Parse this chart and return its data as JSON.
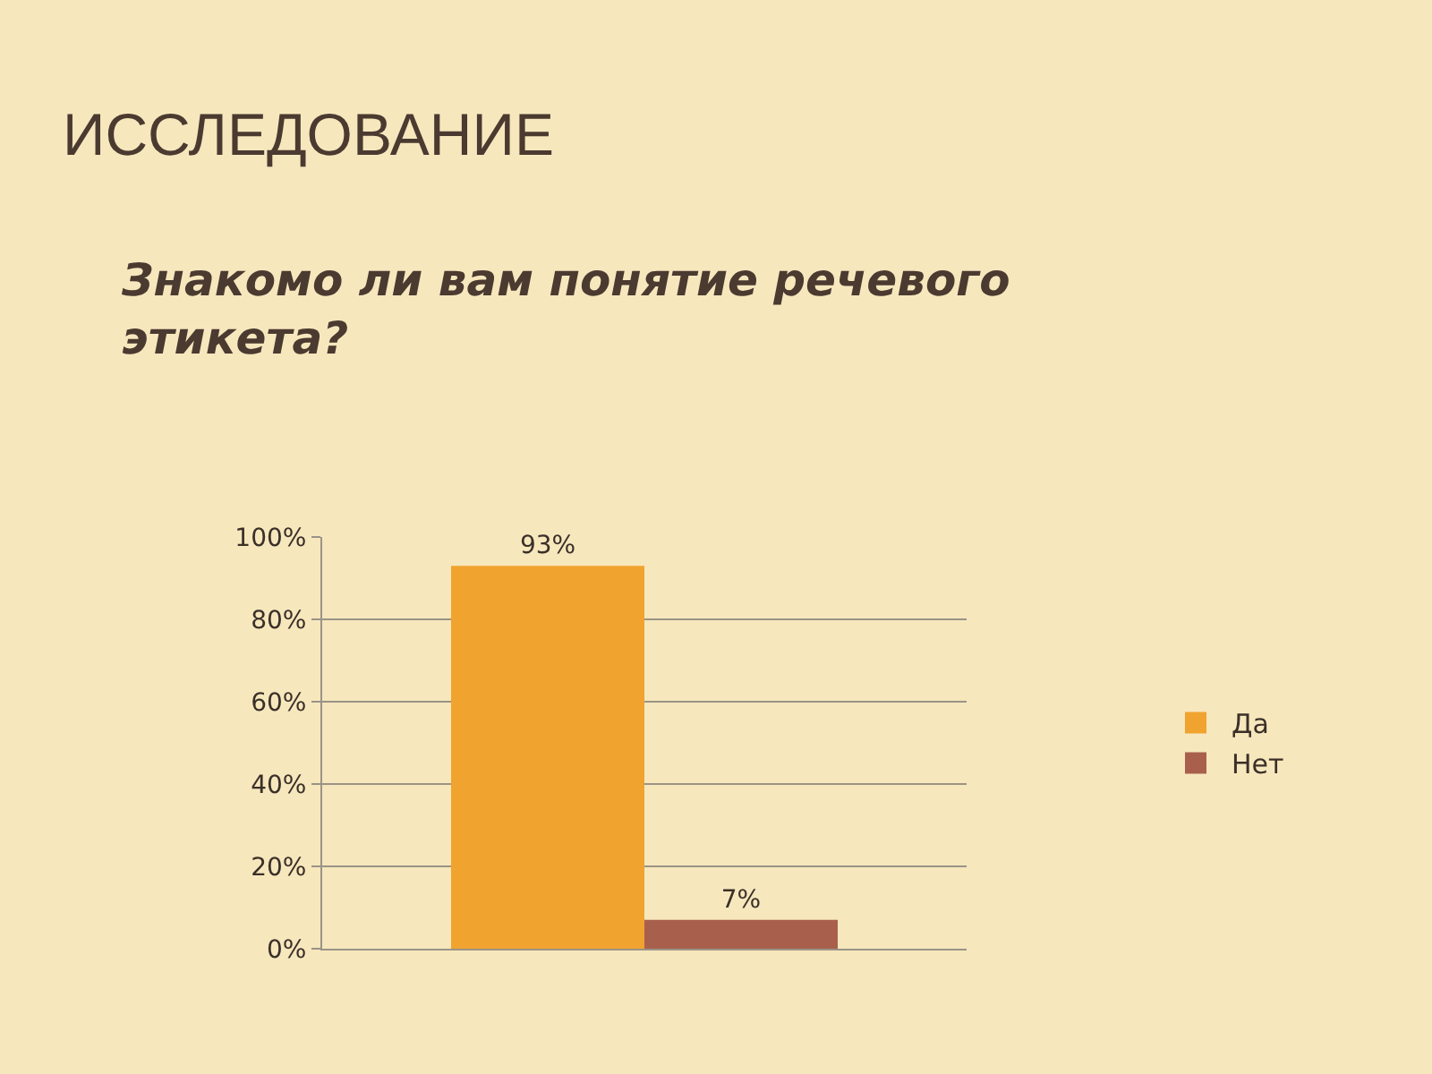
{
  "chart_data": {
    "type": "bar",
    "title": "ИССЛЕДОВАНИЕ",
    "subtitle": "Знакомо ли вам понятие речевого этикета?",
    "categories": [
      null
    ],
    "series": [
      {
        "name": "Да",
        "color": "#f0a32e",
        "values": [
          93
        ],
        "value_labels": [
          "93%"
        ]
      },
      {
        "name": "Нет",
        "color": "#a8604c",
        "values": [
          7
        ],
        "value_labels": [
          "7%"
        ]
      }
    ],
    "ylim": [
      0,
      100
    ],
    "yticks": [
      {
        "value": 0,
        "label": "0%"
      },
      {
        "value": 20,
        "label": "20%"
      },
      {
        "value": 40,
        "label": "40%"
      },
      {
        "value": 60,
        "label": "60%"
      },
      {
        "value": 80,
        "label": "80%"
      },
      {
        "value": 100,
        "label": "100%"
      }
    ],
    "grid": "y",
    "legend": "right"
  }
}
